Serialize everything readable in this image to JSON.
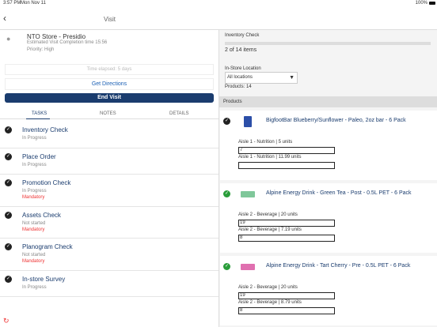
{
  "status_bar": {
    "time": "3:57 PM",
    "date": "Mon Nov 11",
    "battery": "100%"
  },
  "header": {
    "title": "Visit"
  },
  "store": {
    "name": "NTO Store - Presidio",
    "completion": "Estimated Visit Completion time 15:56",
    "priority": "Priority: High"
  },
  "time_elapsed": "Time elapsed: 5 days",
  "get_directions": "Get Directions",
  "end_visit": "End Visit",
  "tabs": [
    "TASKS",
    "NOTES",
    "DETAILS"
  ],
  "tasks": [
    {
      "name": "Inventory Check",
      "status": "In Progress"
    },
    {
      "name": "Place Order",
      "status": "In Progress"
    },
    {
      "name": "Promotion Check",
      "status": "In Progress",
      "mandatory": "Mandatory"
    },
    {
      "name": "Assets Check",
      "status": "Not started",
      "mandatory": "Mandatory"
    },
    {
      "name": "Planogram Check",
      "status": "Not started",
      "mandatory": "Mandatory"
    },
    {
      "name": "In-store Survey",
      "status": "In Progress"
    }
  ],
  "inventory": {
    "title": "Inventory Check",
    "progress": "2 of 14 items",
    "location_label": "In-Store Location",
    "location": "All locations",
    "count": "Products: 14",
    "section": "Products"
  },
  "products": [
    {
      "name": "BigfootBar Blueberry/Sunflower - Paleo, 2oz bar - 6 Pack",
      "lines": [
        {
          "label": "Aisle 1 - Nutrition | 5 units",
          "input": "7"
        },
        {
          "label": "Aisle 1 - Nutrition | 11.99 units"
        }
      ]
    },
    {
      "name": "Alpine Energy Drink - Green Tea - Post - 0.5L PET - 6 Pack",
      "lines": [
        {
          "label": "Aisle 2 - Beverage | 20 units",
          "input": "19"
        },
        {
          "label": "Aisle 2 - Beverage | 7.19 units",
          "input": "8"
        }
      ]
    },
    {
      "name": "Alpine Energy Drink - Tart Cherry - Pre - 0.5L PET - 6 Pack",
      "lines": [
        {
          "label": "Aisle 2 - Beverage | 20 units",
          "input": "19"
        },
        {
          "label": "Aisle 2 - Beverage | 8.79 units",
          "input": "8"
        }
      ]
    }
  ]
}
